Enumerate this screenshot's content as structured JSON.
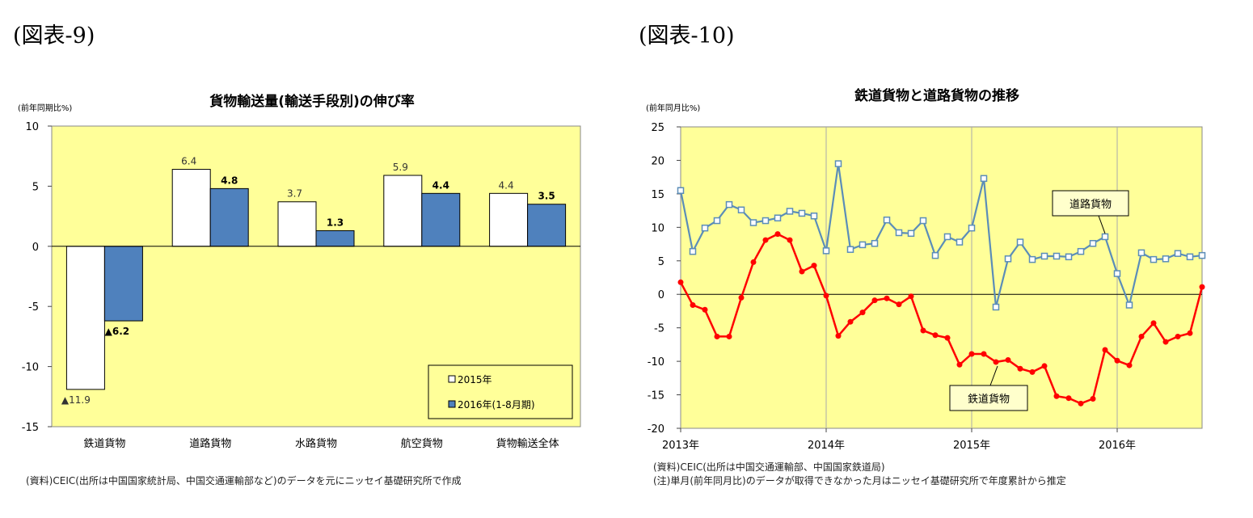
{
  "figure_labels": {
    "left": "(図表-9)",
    "right": "(図表-10)"
  },
  "chart_data": [
    {
      "type": "bar",
      "title": "貨物輸送量(輸送手段別)の伸び率",
      "ylabel": "(前年同期比%)",
      "xlabel": "",
      "ylim": [
        -15,
        10
      ],
      "yticks": [
        10,
        5,
        0,
        -5,
        -10,
        -15
      ],
      "categories": [
        "鉄道貨物",
        "道路貨物",
        "水路貨物",
        "航空貨物",
        "貨物輸送全体"
      ],
      "series": [
        {
          "name": "2015年",
          "values": [
            -11.9,
            6.4,
            3.7,
            5.9,
            4.4
          ],
          "labels": [
            "▲11.9",
            "6.4",
            "3.7",
            "5.9",
            "4.4"
          ],
          "color": "#ffffff"
        },
        {
          "name": "2016年(1-8月期)",
          "values": [
            -6.2,
            4.8,
            1.3,
            4.4,
            3.5
          ],
          "labels": [
            "▲6.2",
            "4.8",
            "1.3",
            "4.4",
            "3.5"
          ],
          "color": "#4f81bd"
        }
      ],
      "legend_position": "bottom-right",
      "plot_background": "#ffff99",
      "source_note": "(資料)CEIC(出所は中国国家統計局、中国交通運輸部など)のデータを元にニッセイ基礎研究所で作成"
    },
    {
      "type": "line",
      "title": "鉄道貨物と道路貨物の推移",
      "ylabel": "(前年同月比%)",
      "xlabel": "",
      "ylim": [
        -20,
        25
      ],
      "yticks": [
        25,
        20,
        15,
        10,
        5,
        0,
        -5,
        -10,
        -15,
        -20
      ],
      "x_range": [
        "2013-01",
        "2016-08"
      ],
      "x_tick_labels": [
        "2013年",
        "2014年",
        "2015年",
        "2016年"
      ],
      "x": [
        "2013-01",
        "2013-02",
        "2013-03",
        "2013-04",
        "2013-05",
        "2013-06",
        "2013-07",
        "2013-08",
        "2013-09",
        "2013-10",
        "2013-11",
        "2013-12",
        "2014-01",
        "2014-02",
        "2014-03",
        "2014-04",
        "2014-05",
        "2014-06",
        "2014-07",
        "2014-08",
        "2014-09",
        "2014-10",
        "2014-11",
        "2014-12",
        "2015-01",
        "2015-02",
        "2015-03",
        "2015-04",
        "2015-05",
        "2015-06",
        "2015-07",
        "2015-08",
        "2015-09",
        "2015-10",
        "2015-11",
        "2015-12",
        "2016-01",
        "2016-02",
        "2016-03",
        "2016-04",
        "2016-05",
        "2016-06",
        "2016-07",
        "2016-08"
      ],
      "series": [
        {
          "name": "道路貨物",
          "color": "#5b8db8",
          "marker": "square",
          "values": [
            15.5,
            6.4,
            9.9,
            11,
            13.4,
            12.6,
            10.7,
            11,
            11.4,
            12.4,
            12.1,
            11.7,
            6.5,
            19.5,
            6.7,
            7.4,
            7.6,
            11.1,
            9.2,
            9.1,
            11,
            5.8,
            8.6,
            7.8,
            9.9,
            17.3,
            -1.9,
            5.3,
            7.8,
            5.2,
            5.7,
            5.7,
            5.6,
            6.4,
            7.6,
            8.6,
            3.1,
            -1.6,
            6.2,
            5.2,
            5.3,
            6.1,
            5.6,
            5.8
          ]
        },
        {
          "name": "鉄道貨物",
          "color": "#ff0000",
          "marker": "circle",
          "values": [
            1.8,
            -1.6,
            -2.3,
            -6.3,
            -6.3,
            -0.5,
            4.8,
            8.1,
            9,
            8.1,
            3.4,
            4.3,
            -0.2,
            -6.2,
            -4.1,
            -2.7,
            -0.9,
            -0.6,
            -1.5,
            -0.3,
            -5.4,
            -6.1,
            -6.5,
            -10.5,
            -8.9,
            -8.9,
            -10.1,
            -9.8,
            -11.1,
            -11.6,
            -10.7,
            -15.2,
            -15.5,
            -16.3,
            -15.6,
            -8.3,
            -9.9,
            -10.6,
            -6.3,
            -4.3,
            -7.1,
            -6.3,
            -5.8,
            1.1
          ]
        }
      ],
      "callouts": [
        "道路貨物",
        "鉄道貨物"
      ],
      "plot_background": "#ffff99",
      "source_notes": [
        "(資料)CEIC(出所は中国交通運輸部、中国国家鉄道局)",
        "(注)単月(前年同月比)のデータが取得できなかった月はニッセイ基礎研究所で年度累計から推定"
      ]
    }
  ]
}
